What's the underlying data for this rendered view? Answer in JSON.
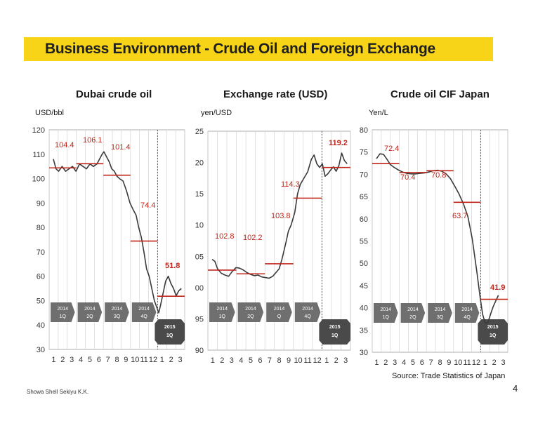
{
  "slide_title": "Business Environment - Crude Oil and Foreign Exchange",
  "footer_company": "Showa Shell Sekiyu K.K.",
  "source_note": "Source: Trade Statistics of Japan",
  "page_number": "4",
  "colors": {
    "banner": "#f7d417",
    "avg_line": "#c0261b",
    "quarter_box": "#6f6f6f",
    "series": "#3a3a3a"
  },
  "chart_data": [
    {
      "type": "line",
      "title": "Dubai crude oil",
      "ylabel": "USD/bbl",
      "ylim": [
        30,
        120
      ],
      "yticks": [
        "30",
        "40",
        "50",
        "60",
        "70",
        "80",
        "90",
        "100",
        "110",
        "120"
      ],
      "x_months": [
        "1",
        "2",
        "3",
        "4",
        "5",
        "6",
        "7",
        "8",
        "9",
        "10",
        "11",
        "12",
        "1",
        "2",
        "3"
      ],
      "quarter_labels": [
        [
          "2014",
          "1Q"
        ],
        [
          "2014",
          "2Q"
        ],
        [
          "2014",
          "3Q"
        ],
        [
          "2014",
          "4Q"
        ],
        [
          "2015",
          "1Q"
        ]
      ],
      "quarter_averages": [
        {
          "label": "104.4",
          "value": 104.4,
          "bold": false
        },
        {
          "label": "106.1",
          "value": 106.1,
          "bold": false
        },
        {
          "label": "101.4",
          "value": 101.4,
          "bold": false
        },
        {
          "label": "74.4",
          "value": 74.4,
          "bold": false
        },
        {
          "label": "51.8",
          "value": 51.8,
          "bold": true
        }
      ],
      "series": [
        {
          "points": [
            [
              0,
              108
            ],
            [
              0.3,
              104
            ],
            [
              0.6,
              103
            ],
            [
              1,
              105
            ],
            [
              1.4,
              103
            ],
            [
              1.8,
              104
            ],
            [
              2.2,
              105
            ],
            [
              2.6,
              103
            ],
            [
              3,
              106
            ],
            [
              3.4,
              105
            ],
            [
              3.8,
              104
            ],
            [
              4.2,
              106
            ],
            [
              4.6,
              105
            ],
            [
              5,
              106
            ],
            [
              5.3,
              108
            ],
            [
              5.6,
              110
            ],
            [
              5.8,
              111
            ],
            [
              6.1,
              109
            ],
            [
              6.4,
              107
            ],
            [
              6.7,
              104
            ],
            [
              7,
              103
            ],
            [
              7.3,
              101
            ],
            [
              7.6,
              100
            ],
            [
              8,
              99
            ],
            [
              8.4,
              95
            ],
            [
              8.8,
              90
            ],
            [
              9.2,
              87
            ],
            [
              9.5,
              85
            ],
            [
              9.8,
              80
            ],
            [
              10.1,
              76
            ],
            [
              10.4,
              70
            ],
            [
              10.7,
              63
            ],
            [
              11,
              60
            ],
            [
              11.3,
              55
            ],
            [
              11.6,
              50
            ],
            [
              11.9,
              47
            ],
            [
              12.1,
              45
            ],
            [
              12.3,
              48
            ],
            [
              12.6,
              53
            ],
            [
              12.9,
              58
            ],
            [
              13.2,
              60
            ],
            [
              13.5,
              57
            ],
            [
              13.8,
              55
            ],
            [
              14.1,
              52
            ],
            [
              14.4,
              54
            ],
            [
              14.7,
              55
            ]
          ]
        }
      ]
    },
    {
      "type": "line",
      "title": "Exchange rate (USD)",
      "ylabel": "yen/USD",
      "ylim": [
        90,
        125
      ],
      "yticks": [
        "90",
        "95",
        "00",
        "05",
        "10",
        "15",
        "20",
        "25"
      ],
      "x_months": [
        "1",
        "2",
        "3",
        "4",
        "5",
        "6",
        "7",
        "8",
        "9",
        "10",
        "11",
        "12",
        "1",
        "2",
        "3"
      ],
      "quarter_labels": [
        [
          "2014",
          "1Q"
        ],
        [
          "2014",
          "2Q"
        ],
        [
          "2014",
          "Q"
        ],
        [
          "2014",
          "4Q"
        ],
        [
          "2015",
          "1Q"
        ]
      ],
      "quarter_averages": [
        {
          "label": "102.8",
          "value": 102.8,
          "bold": false
        },
        {
          "label": "102.2",
          "value": 102.2,
          "bold": false
        },
        {
          "label": "103.8",
          "value": 103.8,
          "bold": false
        },
        {
          "label": "114.3",
          "value": 114.3,
          "bold": false
        },
        {
          "label": "119.2",
          "value": 119.2,
          "bold": true
        }
      ],
      "series": [
        {
          "points": [
            [
              0,
              104.5
            ],
            [
              0.3,
              104.2
            ],
            [
              0.6,
              103
            ],
            [
              1,
              102.3
            ],
            [
              1.4,
              102
            ],
            [
              1.8,
              101.8
            ],
            [
              2.2,
              102.6
            ],
            [
              2.6,
              103.2
            ],
            [
              3,
              103.1
            ],
            [
              3.4,
              102.8
            ],
            [
              3.8,
              102.4
            ],
            [
              4.2,
              102.1
            ],
            [
              4.6,
              101.9
            ],
            [
              5,
              102
            ],
            [
              5.4,
              101.7
            ],
            [
              5.8,
              101.6
            ],
            [
              6.2,
              101.5
            ],
            [
              6.6,
              101.8
            ],
            [
              7,
              102.5
            ],
            [
              7.3,
              103
            ],
            [
              7.6,
              104.5
            ],
            [
              8,
              107
            ],
            [
              8.3,
              109
            ],
            [
              8.6,
              110
            ],
            [
              9,
              112
            ],
            [
              9.3,
              115
            ],
            [
              9.6,
              116.5
            ],
            [
              10,
              117.5
            ],
            [
              10.4,
              118.5
            ],
            [
              10.8,
              120.5
            ],
            [
              11.1,
              121.2
            ],
            [
              11.4,
              119.8
            ],
            [
              11.7,
              119.2
            ],
            [
              12,
              119.8
            ],
            [
              12.3,
              117.8
            ],
            [
              12.6,
              118.2
            ],
            [
              12.9,
              118.8
            ],
            [
              13.2,
              119.3
            ],
            [
              13.5,
              118.6
            ],
            [
              13.8,
              119.5
            ],
            [
              14.1,
              121.5
            ],
            [
              14.4,
              120.3
            ],
            [
              14.7,
              119.8
            ]
          ]
        }
      ]
    },
    {
      "type": "line",
      "title": "Crude oil CIF Japan",
      "ylabel": "Yen/L",
      "ylim": [
        30,
        80
      ],
      "yticks": [
        "30",
        "35",
        "40",
        "45",
        "50",
        "55",
        "60",
        "65",
        "70",
        "75",
        "80"
      ],
      "x_months": [
        "1",
        "2",
        "3",
        "4",
        "5",
        "6",
        "7",
        "8",
        "9",
        "10",
        "11",
        "12",
        "1",
        "2",
        "3"
      ],
      "quarter_labels": [
        [
          "2014",
          "1Q"
        ],
        [
          "2014",
          "2Q"
        ],
        [
          "2014",
          "3Q"
        ],
        [
          "2014",
          "4Q"
        ],
        [
          "2015",
          "1Q"
        ]
      ],
      "quarter_averages": [
        {
          "label": "72.4",
          "value": 72.4,
          "bold": false
        },
        {
          "label": "70.4",
          "value": 70.4,
          "bold": false
        },
        {
          "label": "70.8",
          "value": 70.8,
          "bold": false
        },
        {
          "label": "63.7",
          "value": 63.7,
          "bold": false
        },
        {
          "label": "41.9",
          "value": 41.9,
          "bold": true
        }
      ],
      "series": [
        {
          "points": [
            [
              0,
              73.5
            ],
            [
              0.4,
              74.6
            ],
            [
              0.8,
              74.5
            ],
            [
              1.2,
              73.4
            ],
            [
              1.6,
              72.2
            ],
            [
              2,
              71.6
            ],
            [
              2.5,
              71
            ],
            [
              3,
              70.5
            ],
            [
              3.5,
              70.2
            ],
            [
              4,
              70.1
            ],
            [
              4.5,
              70.1
            ],
            [
              5,
              70.2
            ],
            [
              5.5,
              70.3
            ],
            [
              6,
              70.5
            ],
            [
              6.5,
              70.8
            ],
            [
              7,
              70.9
            ],
            [
              7.5,
              70.7
            ],
            [
              8,
              70.1
            ],
            [
              8.5,
              69
            ],
            [
              9,
              67.3
            ],
            [
              9.5,
              65.5
            ],
            [
              10,
              63.3
            ],
            [
              10.5,
              60.5
            ],
            [
              11,
              55.5
            ],
            [
              11.5,
              48.5
            ],
            [
              11.9,
              42.5
            ],
            [
              12.2,
              38.5
            ],
            [
              12.5,
              36.5
            ],
            [
              12.8,
              36.7
            ],
            [
              13.1,
              38.5
            ],
            [
              13.4,
              40.2
            ],
            [
              13.7,
              41.5
            ],
            [
              14,
              42.8
            ]
          ]
        }
      ]
    }
  ]
}
